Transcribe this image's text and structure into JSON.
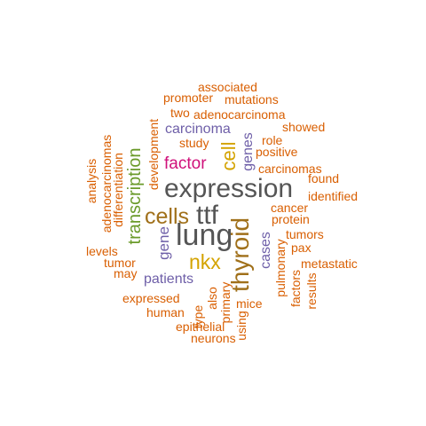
{
  "colors": {
    "orange": "#D95F02",
    "gray": "#555555",
    "purple": "#6E5FA8",
    "green": "#6A9A2A",
    "magenta": "#D0107A",
    "gold": "#D4A300",
    "brown": "#A0701A"
  },
  "words": [
    {
      "text": "expression",
      "color": "gray"
    },
    {
      "text": "lung",
      "color": "gray"
    },
    {
      "text": "ttf",
      "color": "gray"
    },
    {
      "text": "cells",
      "color": "brown"
    },
    {
      "text": "thyroid",
      "color": "brown"
    },
    {
      "text": "nkx",
      "color": "gold"
    },
    {
      "text": "transcription",
      "color": "green"
    },
    {
      "text": "factor",
      "color": "magenta"
    },
    {
      "text": "cell",
      "color": "gold"
    },
    {
      "text": "gene",
      "color": "purple"
    },
    {
      "text": "patients",
      "color": "purple"
    },
    {
      "text": "carcinoma",
      "color": "purple"
    },
    {
      "text": "genes",
      "color": "purple"
    },
    {
      "text": "cases",
      "color": "purple"
    },
    {
      "text": "development",
      "color": "orange"
    },
    {
      "text": "associated",
      "color": "orange"
    },
    {
      "text": "promoter",
      "color": "orange"
    },
    {
      "text": "mutations",
      "color": "orange"
    },
    {
      "text": "two",
      "color": "orange"
    },
    {
      "text": "adenocarcinoma",
      "color": "orange"
    },
    {
      "text": "showed",
      "color": "orange"
    },
    {
      "text": "study",
      "color": "orange"
    },
    {
      "text": "role",
      "color": "orange"
    },
    {
      "text": "positive",
      "color": "orange"
    },
    {
      "text": "carcinomas",
      "color": "orange"
    },
    {
      "text": "found",
      "color": "orange"
    },
    {
      "text": "identified",
      "color": "orange"
    },
    {
      "text": "cancer",
      "color": "orange"
    },
    {
      "text": "protein",
      "color": "orange"
    },
    {
      "text": "tumors",
      "color": "orange"
    },
    {
      "text": "pax",
      "color": "orange"
    },
    {
      "text": "metastatic",
      "color": "orange"
    },
    {
      "text": "pulmonary",
      "color": "orange"
    },
    {
      "text": "factors",
      "color": "orange"
    },
    {
      "text": "results",
      "color": "orange"
    },
    {
      "text": "adenocarcinomas",
      "color": "orange"
    },
    {
      "text": "analysis",
      "color": "orange"
    },
    {
      "text": "differentiation",
      "color": "orange"
    },
    {
      "text": "levels",
      "color": "orange"
    },
    {
      "text": "tumor",
      "color": "orange"
    },
    {
      "text": "may",
      "color": "orange"
    },
    {
      "text": "expressed",
      "color": "orange"
    },
    {
      "text": "human",
      "color": "orange"
    },
    {
      "text": "type",
      "color": "orange"
    },
    {
      "text": "also",
      "color": "orange"
    },
    {
      "text": "primary",
      "color": "orange"
    },
    {
      "text": "mice",
      "color": "orange"
    },
    {
      "text": "epithelial",
      "color": "orange"
    },
    {
      "text": "using",
      "color": "orange"
    },
    {
      "text": "neurons",
      "color": "orange"
    }
  ]
}
